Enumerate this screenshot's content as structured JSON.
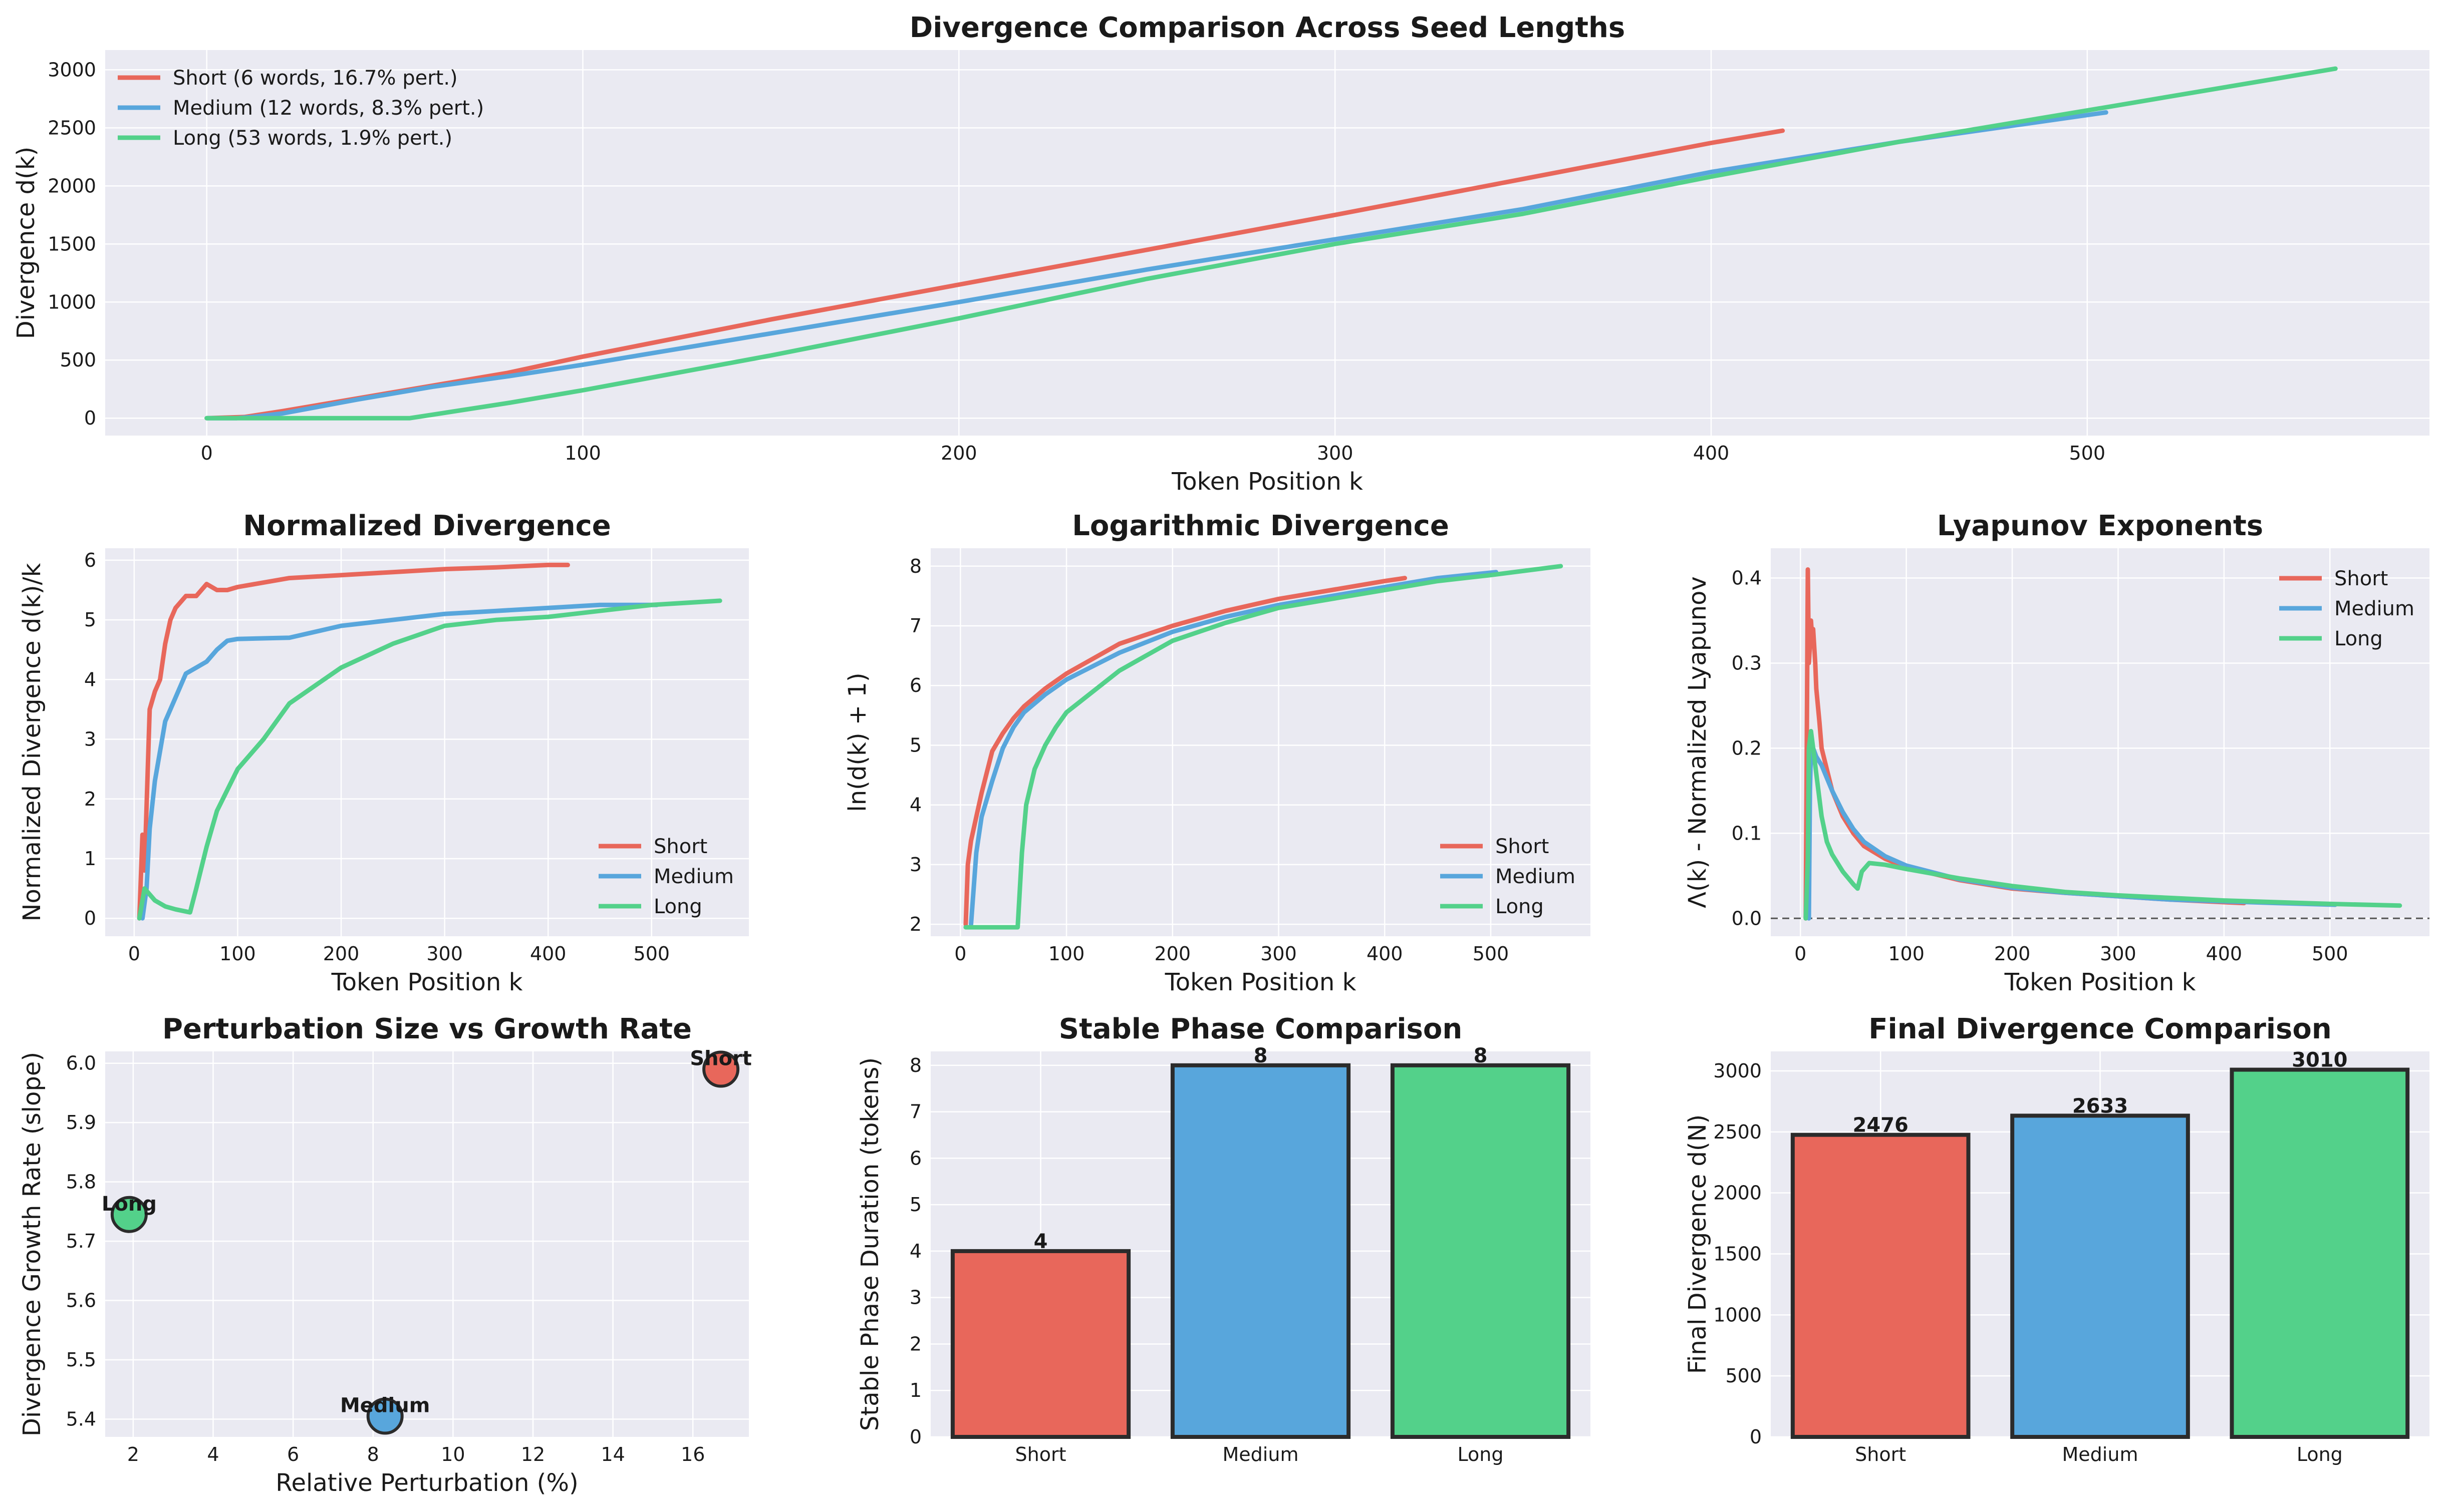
{
  "colors": {
    "short": "#e8675b",
    "medium": "#58a6dc",
    "long": "#53d18a",
    "panel_bg": "#eaeaf2",
    "grid": "#ffffff",
    "edge": "#2b2b2b"
  },
  "chart_data": [
    {
      "id": "main",
      "type": "line",
      "title": "Divergence Comparison Across Seed Lengths",
      "xlabel": "Token Position k",
      "ylabel": "Divergence d(k)",
      "xlim": [
        -27,
        591
      ],
      "ylim": [
        -150,
        3170
      ],
      "xticks": [
        0,
        100,
        200,
        300,
        400,
        500
      ],
      "yticks": [
        0,
        500,
        1000,
        1500,
        2000,
        2500,
        3000
      ],
      "grid": true,
      "legend": "top-left",
      "series": [
        {
          "key": "short",
          "name": "Short (6 words, 16.7% pert.)",
          "x": [
            0,
            10,
            20,
            40,
            60,
            80,
            100,
            150,
            200,
            250,
            300,
            350,
            400,
            419
          ],
          "y": [
            0,
            10,
            60,
            170,
            280,
            390,
            530,
            850,
            1150,
            1450,
            1750,
            2060,
            2370,
            2476
          ]
        },
        {
          "key": "medium",
          "name": "Medium (12 words, 8.3% pert.)",
          "x": [
            0,
            8,
            12,
            20,
            40,
            60,
            80,
            100,
            150,
            200,
            250,
            300,
            350,
            400,
            450,
            505
          ],
          "y": [
            0,
            0,
            10,
            40,
            160,
            270,
            360,
            460,
            730,
            1000,
            1280,
            1540,
            1800,
            2120,
            2380,
            2633
          ]
        },
        {
          "key": "long",
          "name": "Long (53 words, 1.9% pert.)",
          "x": [
            0,
            54,
            60,
            80,
            100,
            150,
            200,
            250,
            300,
            350,
            400,
            450,
            500,
            566
          ],
          "y": [
            0,
            0,
            30,
            130,
            240,
            540,
            860,
            1200,
            1500,
            1760,
            2080,
            2380,
            2650,
            3010
          ]
        }
      ]
    },
    {
      "id": "normalized",
      "type": "line",
      "title": "Normalized Divergence",
      "xlabel": "Token Position k",
      "ylabel": "Normalized Divergence d(k)/k",
      "xlim": [
        -28,
        594
      ],
      "ylim": [
        -0.3,
        6.2
      ],
      "xticks": [
        0,
        100,
        200,
        300,
        400,
        500
      ],
      "yticks": [
        0,
        1,
        2,
        3,
        4,
        5,
        6
      ],
      "grid": true,
      "legend": "lower-right",
      "series": [
        {
          "key": "short",
          "name": "Short",
          "x": [
            5,
            8,
            10,
            15,
            20,
            25,
            30,
            35,
            40,
            50,
            60,
            70,
            80,
            90,
            100,
            150,
            200,
            250,
            300,
            350,
            400,
            419
          ],
          "y": [
            0,
            1.4,
            0.8,
            3.5,
            3.8,
            4.0,
            4.6,
            5.0,
            5.2,
            5.4,
            5.4,
            5.6,
            5.5,
            5.5,
            5.55,
            5.7,
            5.75,
            5.8,
            5.85,
            5.88,
            5.92,
            5.92
          ]
        },
        {
          "key": "medium",
          "name": "Medium",
          "x": [
            8,
            12,
            15,
            20,
            30,
            40,
            50,
            60,
            70,
            80,
            90,
            100,
            150,
            200,
            250,
            300,
            350,
            400,
            450,
            505
          ],
          "y": [
            0,
            0.5,
            1.5,
            2.3,
            3.3,
            3.7,
            4.1,
            4.2,
            4.3,
            4.5,
            4.65,
            4.68,
            4.7,
            4.9,
            5.0,
            5.1,
            5.15,
            5.2,
            5.25,
            5.25
          ]
        },
        {
          "key": "long",
          "name": "Long",
          "x": [
            5,
            10,
            15,
            20,
            30,
            40,
            54,
            60,
            70,
            80,
            100,
            125,
            150,
            200,
            250,
            300,
            350,
            400,
            450,
            500,
            566
          ],
          "y": [
            0,
            0.5,
            0.4,
            0.3,
            0.2,
            0.15,
            0.1,
            0.5,
            1.2,
            1.8,
            2.5,
            3.0,
            3.6,
            4.2,
            4.6,
            4.9,
            5.0,
            5.05,
            5.15,
            5.25,
            5.32
          ]
        }
      ]
    },
    {
      "id": "logarithmic",
      "type": "line",
      "title": "Logarithmic Divergence",
      "xlabel": "Token Position k",
      "ylabel": "ln(d(k) + 1)",
      "xlim": [
        -28,
        594
      ],
      "ylim": [
        1.8,
        8.3
      ],
      "xticks": [
        0,
        100,
        200,
        300,
        400,
        500
      ],
      "yticks": [
        2,
        3,
        4,
        5,
        6,
        7,
        8
      ],
      "grid": true,
      "legend": "lower-right",
      "series": [
        {
          "key": "short",
          "name": "Short",
          "x": [
            5,
            7,
            10,
            15,
            20,
            30,
            40,
            50,
            60,
            80,
            100,
            150,
            200,
            250,
            300,
            350,
            400,
            419
          ],
          "y": [
            2.0,
            3.0,
            3.4,
            3.8,
            4.2,
            4.9,
            5.2,
            5.45,
            5.65,
            5.95,
            6.2,
            6.7,
            7.0,
            7.25,
            7.45,
            7.6,
            7.75,
            7.8
          ]
        },
        {
          "key": "medium",
          "name": "Medium",
          "x": [
            10,
            15,
            20,
            30,
            40,
            50,
            60,
            80,
            100,
            150,
            200,
            250,
            300,
            350,
            400,
            450,
            505
          ],
          "y": [
            2.0,
            3.2,
            3.8,
            4.4,
            4.95,
            5.3,
            5.55,
            5.85,
            6.1,
            6.55,
            6.9,
            7.15,
            7.35,
            7.5,
            7.65,
            7.8,
            7.9
          ]
        },
        {
          "key": "long",
          "name": "Long",
          "x": [
            5,
            54,
            58,
            62,
            70,
            80,
            90,
            100,
            150,
            200,
            250,
            300,
            350,
            400,
            450,
            500,
            566
          ],
          "y": [
            1.95,
            1.95,
            3.2,
            4.0,
            4.6,
            5.0,
            5.3,
            5.55,
            6.25,
            6.75,
            7.05,
            7.3,
            7.45,
            7.6,
            7.75,
            7.85,
            8.0
          ]
        }
      ]
    },
    {
      "id": "lyapunov",
      "type": "line",
      "title": "Lyapunov Exponents",
      "xlabel": "Token Position k",
      "ylabel": "Λ(k) - Normalized Lyapunov",
      "xlim": [
        -28,
        594
      ],
      "ylim": [
        -0.021,
        0.435
      ],
      "xticks": [
        0,
        100,
        200,
        300,
        400,
        500
      ],
      "yticks": [
        0.0,
        0.1,
        0.2,
        0.3,
        0.4
      ],
      "grid": true,
      "legend": "top-right",
      "reference_line_y": 0.0,
      "series": [
        {
          "key": "short",
          "name": "Short",
          "x": [
            5,
            7,
            8,
            9,
            10,
            11,
            12,
            13,
            14,
            15,
            18,
            20,
            25,
            30,
            40,
            50,
            60,
            80,
            100,
            150,
            200,
            250,
            300,
            350,
            400,
            419
          ],
          "y": [
            0,
            0.41,
            0.3,
            0.32,
            0.35,
            0.33,
            0.34,
            0.32,
            0.3,
            0.27,
            0.23,
            0.2,
            0.175,
            0.15,
            0.12,
            0.1,
            0.085,
            0.07,
            0.06,
            0.045,
            0.035,
            0.03,
            0.026,
            0.022,
            0.019,
            0.018
          ]
        },
        {
          "key": "medium",
          "name": "Medium",
          "x": [
            8,
            9,
            10,
            12,
            15,
            20,
            25,
            30,
            40,
            50,
            60,
            80,
            100,
            150,
            200,
            250,
            300,
            350,
            400,
            450,
            505
          ],
          "y": [
            0,
            0.15,
            0.2,
            0.2,
            0.19,
            0.18,
            0.165,
            0.15,
            0.125,
            0.105,
            0.09,
            0.073,
            0.062,
            0.046,
            0.036,
            0.03,
            0.026,
            0.022,
            0.02,
            0.018,
            0.016
          ]
        },
        {
          "key": "long",
          "name": "Long",
          "x": [
            5,
            7,
            8,
            10,
            12,
            15,
            20,
            25,
            30,
            40,
            50,
            54,
            58,
            65,
            80,
            100,
            150,
            200,
            250,
            300,
            350,
            400,
            450,
            500,
            566
          ],
          "y": [
            0,
            0.07,
            0.2,
            0.22,
            0.2,
            0.17,
            0.12,
            0.09,
            0.075,
            0.055,
            0.04,
            0.035,
            0.055,
            0.065,
            0.063,
            0.058,
            0.047,
            0.038,
            0.031,
            0.027,
            0.024,
            0.021,
            0.019,
            0.017,
            0.015
          ]
        }
      ]
    },
    {
      "id": "perturbation",
      "type": "scatter",
      "title": "Perturbation Size vs Growth Rate",
      "xlabel": "Relative Perturbation (%)",
      "ylabel": "Divergence Growth Rate (slope)",
      "xlim": [
        1.3,
        17.4
      ],
      "ylim": [
        5.37,
        6.02
      ],
      "xticks": [
        2,
        4,
        6,
        8,
        10,
        12,
        14,
        16
      ],
      "yticks": [
        5.4,
        5.5,
        5.6,
        5.7,
        5.8,
        5.9,
        6.0
      ],
      "grid": true,
      "points": [
        {
          "key": "short",
          "label": "Short",
          "x": 16.7,
          "y": 5.99
        },
        {
          "key": "medium",
          "label": "Medium",
          "x": 8.3,
          "y": 5.405
        },
        {
          "key": "long",
          "label": "Long",
          "x": 1.9,
          "y": 5.745
        }
      ]
    },
    {
      "id": "stable",
      "type": "bar",
      "title": "Stable Phase Comparison",
      "xlabel": "",
      "ylabel": "Stable Phase Duration (tokens)",
      "ylim": [
        0,
        8.3
      ],
      "yticks": [
        0,
        1,
        2,
        3,
        4,
        5,
        6,
        7,
        8
      ],
      "grid": true,
      "categories": [
        "Short",
        "Medium",
        "Long"
      ],
      "keys": [
        "short",
        "medium",
        "long"
      ],
      "values": [
        4,
        8,
        8
      ],
      "value_labels": [
        "4",
        "8",
        "8"
      ]
    },
    {
      "id": "final",
      "type": "bar",
      "title": "Final Divergence Comparison",
      "xlabel": "",
      "ylabel": "Final Divergence d(N)",
      "ylim": [
        0,
        3160
      ],
      "yticks": [
        0,
        500,
        1000,
        1500,
        2000,
        2500,
        3000
      ],
      "grid": true,
      "categories": [
        "Short",
        "Medium",
        "Long"
      ],
      "keys": [
        "short",
        "medium",
        "long"
      ],
      "values": [
        2476,
        2633,
        3010
      ],
      "value_labels": [
        "2476",
        "2633",
        "3010"
      ]
    }
  ]
}
